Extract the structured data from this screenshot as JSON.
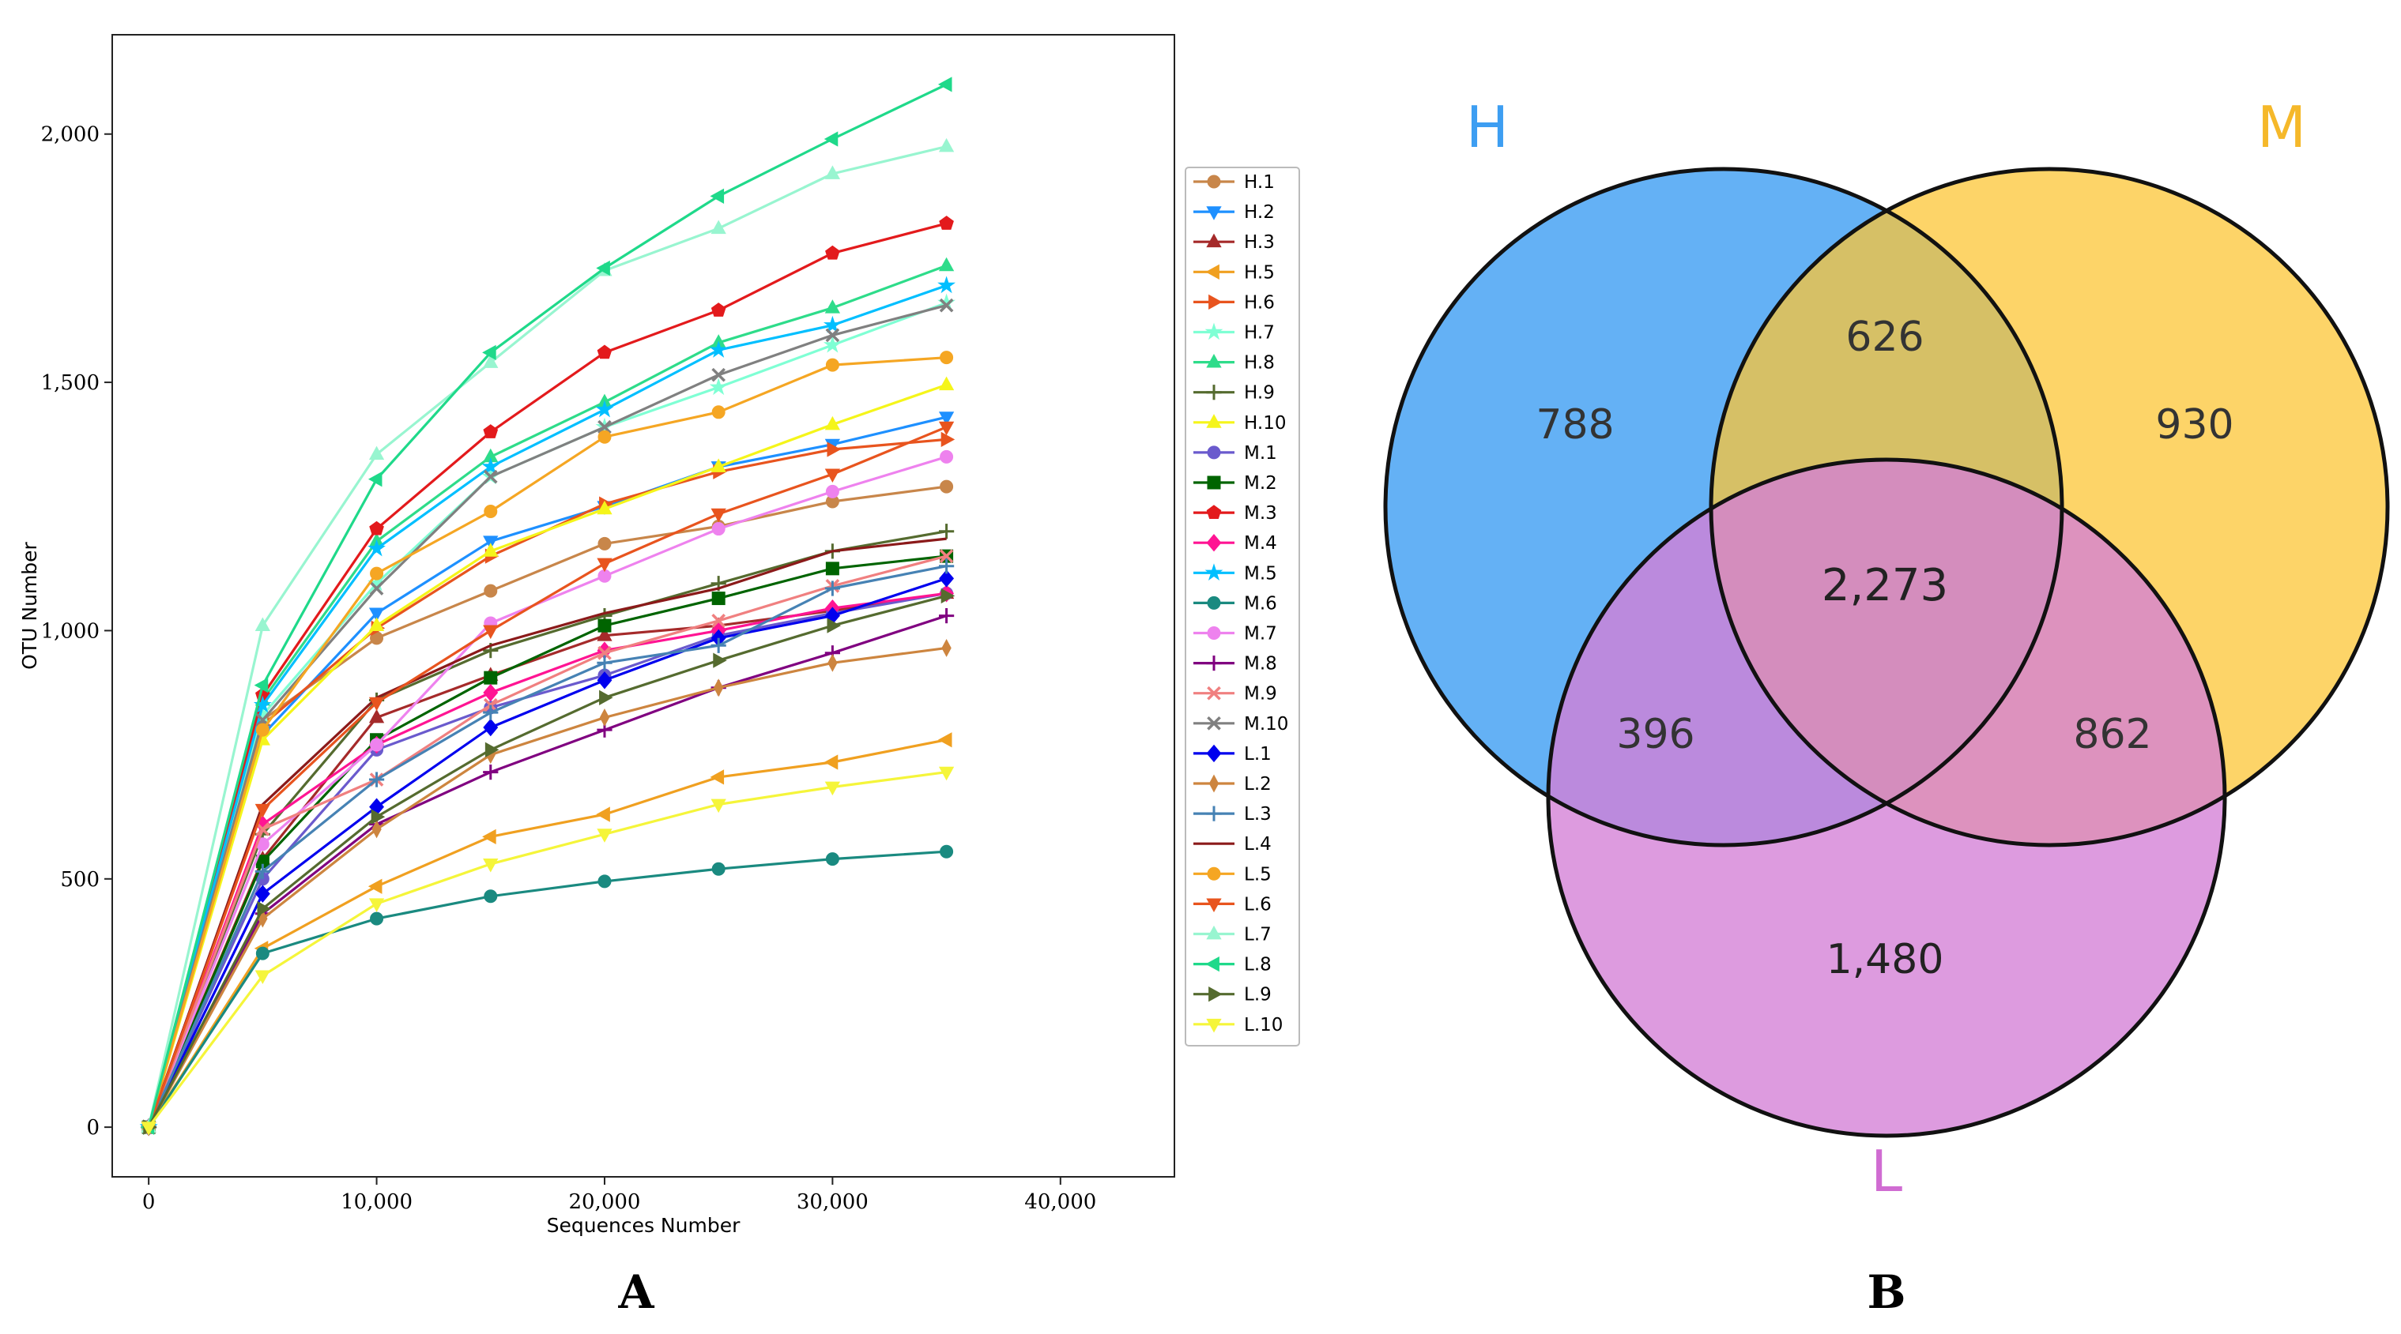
{
  "chart_data": [
    {
      "type": "line",
      "panel_label": "A",
      "xlabel": "Sequences Number",
      "ylabel": "OTU Number",
      "xlim": [
        -1600,
        45000
      ],
      "ylim": [
        -100,
        2200
      ],
      "xticks": [
        0,
        10000,
        20000,
        30000,
        40000
      ],
      "xtick_labels": [
        "0",
        "10,000",
        "20,000",
        "30,000",
        "40,000"
      ],
      "yticks": [
        0,
        500,
        1000,
        1500,
        2000
      ],
      "ytick_labels": [
        "0",
        "500",
        "1,000",
        "1,500",
        "2,000"
      ],
      "grid": false,
      "legend_position": "right",
      "x": [
        0,
        5000,
        10000,
        15000,
        20000,
        25000,
        30000,
        35000
      ],
      "series": [
        {
          "name": "H.1",
          "color": "#c8864a",
          "marker": "circle",
          "values": [
            0,
            820,
            985,
            1080,
            1175,
            1210,
            1260,
            1290
          ]
        },
        {
          "name": "H.2",
          "color": "#1e90ff",
          "marker": "tri-down",
          "values": [
            0,
            790,
            1035,
            1180,
            1250,
            1330,
            1375,
            1430
          ]
        },
        {
          "name": "H.3",
          "color": "#a52a2a",
          "marker": "tri-up",
          "values": [
            0,
            540,
            825,
            910,
            990,
            1010,
            1040,
            1075
          ]
        },
        {
          "name": "H.5",
          "color": "#f0a020",
          "marker": "tri-left",
          "values": [
            0,
            360,
            485,
            585,
            630,
            705,
            735,
            780
          ]
        },
        {
          "name": "H.6",
          "color": "#e8541e",
          "marker": "tri-right",
          "values": [
            0,
            810,
            1005,
            1150,
            1255,
            1320,
            1365,
            1385
          ]
        },
        {
          "name": "H.7",
          "color": "#7fffd4",
          "marker": "star",
          "values": [
            0,
            830,
            1095,
            1310,
            1410,
            1490,
            1575,
            1660
          ]
        },
        {
          "name": "H.8",
          "color": "#2edc8a",
          "marker": "tri-up",
          "values": [
            0,
            860,
            1180,
            1350,
            1460,
            1580,
            1650,
            1735
          ]
        },
        {
          "name": "H.9",
          "color": "#556b2f",
          "marker": "plus",
          "values": [
            0,
            590,
            860,
            960,
            1030,
            1095,
            1160,
            1200
          ]
        },
        {
          "name": "H.10",
          "color": "#f5f51a",
          "marker": "tri-up",
          "values": [
            0,
            780,
            1010,
            1160,
            1245,
            1330,
            1415,
            1495
          ]
        },
        {
          "name": "M.1",
          "color": "#6a5acd",
          "marker": "circle",
          "values": [
            0,
            500,
            760,
            845,
            910,
            990,
            1035,
            1075
          ]
        },
        {
          "name": "M.2",
          "color": "#006400",
          "marker": "square",
          "values": [
            0,
            535,
            780,
            905,
            1010,
            1065,
            1125,
            1150
          ]
        },
        {
          "name": "M.3",
          "color": "#e31a1c",
          "marker": "pentagon",
          "values": [
            0,
            870,
            1205,
            1400,
            1560,
            1645,
            1760,
            1820
          ]
        },
        {
          "name": "M.4",
          "color": "#ff1493",
          "marker": "diamond",
          "values": [
            0,
            610,
            770,
            875,
            960,
            1000,
            1045,
            1075
          ]
        },
        {
          "name": "M.5",
          "color": "#00bfff",
          "marker": "star",
          "values": [
            0,
            850,
            1165,
            1330,
            1445,
            1565,
            1615,
            1695
          ]
        },
        {
          "name": "M.6",
          "color": "#1a8a80",
          "marker": "circle",
          "values": [
            0,
            350,
            420,
            465,
            495,
            520,
            540,
            555
          ]
        },
        {
          "name": "M.7",
          "color": "#ee82ee",
          "marker": "circle",
          "values": [
            0,
            570,
            770,
            1015,
            1110,
            1205,
            1280,
            1350
          ]
        },
        {
          "name": "M.8",
          "color": "#800080",
          "marker": "plus",
          "values": [
            0,
            430,
            610,
            715,
            800,
            885,
            955,
            1030
          ]
        },
        {
          "name": "M.9",
          "color": "#f08080",
          "marker": "x",
          "values": [
            0,
            600,
            700,
            850,
            955,
            1020,
            1090,
            1150
          ]
        },
        {
          "name": "M.10",
          "color": "#808080",
          "marker": "x",
          "values": [
            0,
            820,
            1085,
            1310,
            1410,
            1515,
            1595,
            1655
          ]
        },
        {
          "name": "L.1",
          "color": "#0000ee",
          "marker": "diamond",
          "values": [
            0,
            470,
            645,
            805,
            900,
            985,
            1030,
            1105
          ]
        },
        {
          "name": "L.2",
          "color": "#cd853f",
          "marker": "thin-diamond",
          "values": [
            0,
            420,
            600,
            750,
            825,
            885,
            935,
            965
          ]
        },
        {
          "name": "L.3",
          "color": "#4682b4",
          "marker": "plus",
          "values": [
            0,
            515,
            700,
            835,
            935,
            970,
            1085,
            1130
          ]
        },
        {
          "name": "L.4",
          "color": "#8b1a1a",
          "marker": "none",
          "values": [
            0,
            650,
            865,
            970,
            1035,
            1085,
            1160,
            1185
          ]
        },
        {
          "name": "L.5",
          "color": "#f5a623",
          "marker": "circle",
          "values": [
            0,
            800,
            1115,
            1240,
            1390,
            1440,
            1535,
            1550
          ]
        },
        {
          "name": "L.6",
          "color": "#e8541e",
          "marker": "tri-down",
          "values": [
            0,
            640,
            855,
            1000,
            1135,
            1235,
            1315,
            1410
          ]
        },
        {
          "name": "L.7",
          "color": "#98f5d0",
          "marker": "tri-up",
          "values": [
            0,
            1010,
            1355,
            1540,
            1725,
            1810,
            1920,
            1975
          ]
        },
        {
          "name": "L.8",
          "color": "#1fd98a",
          "marker": "tri-left",
          "values": [
            0,
            890,
            1305,
            1560,
            1730,
            1875,
            1990,
            2100
          ]
        },
        {
          "name": "L.9",
          "color": "#556b2f",
          "marker": "tri-right",
          "values": [
            0,
            440,
            625,
            760,
            865,
            940,
            1010,
            1070
          ]
        },
        {
          "name": "L.10",
          "color": "#f5f53a",
          "marker": "tri-down",
          "values": [
            0,
            305,
            450,
            530,
            590,
            650,
            685,
            715
          ]
        }
      ]
    },
    {
      "type": "venn",
      "panel_label": "B",
      "sets": [
        {
          "name": "H",
          "color": "#3d9ef2"
        },
        {
          "name": "M",
          "color": "#fcc536"
        },
        {
          "name": "L",
          "color": "#d47fd6"
        }
      ],
      "regions": {
        "H_only": "788",
        "M_only": "930",
        "L_only": "1,480",
        "H_M": "626",
        "H_L": "396",
        "M_L": "862",
        "H_M_L": "2,273"
      }
    }
  ]
}
